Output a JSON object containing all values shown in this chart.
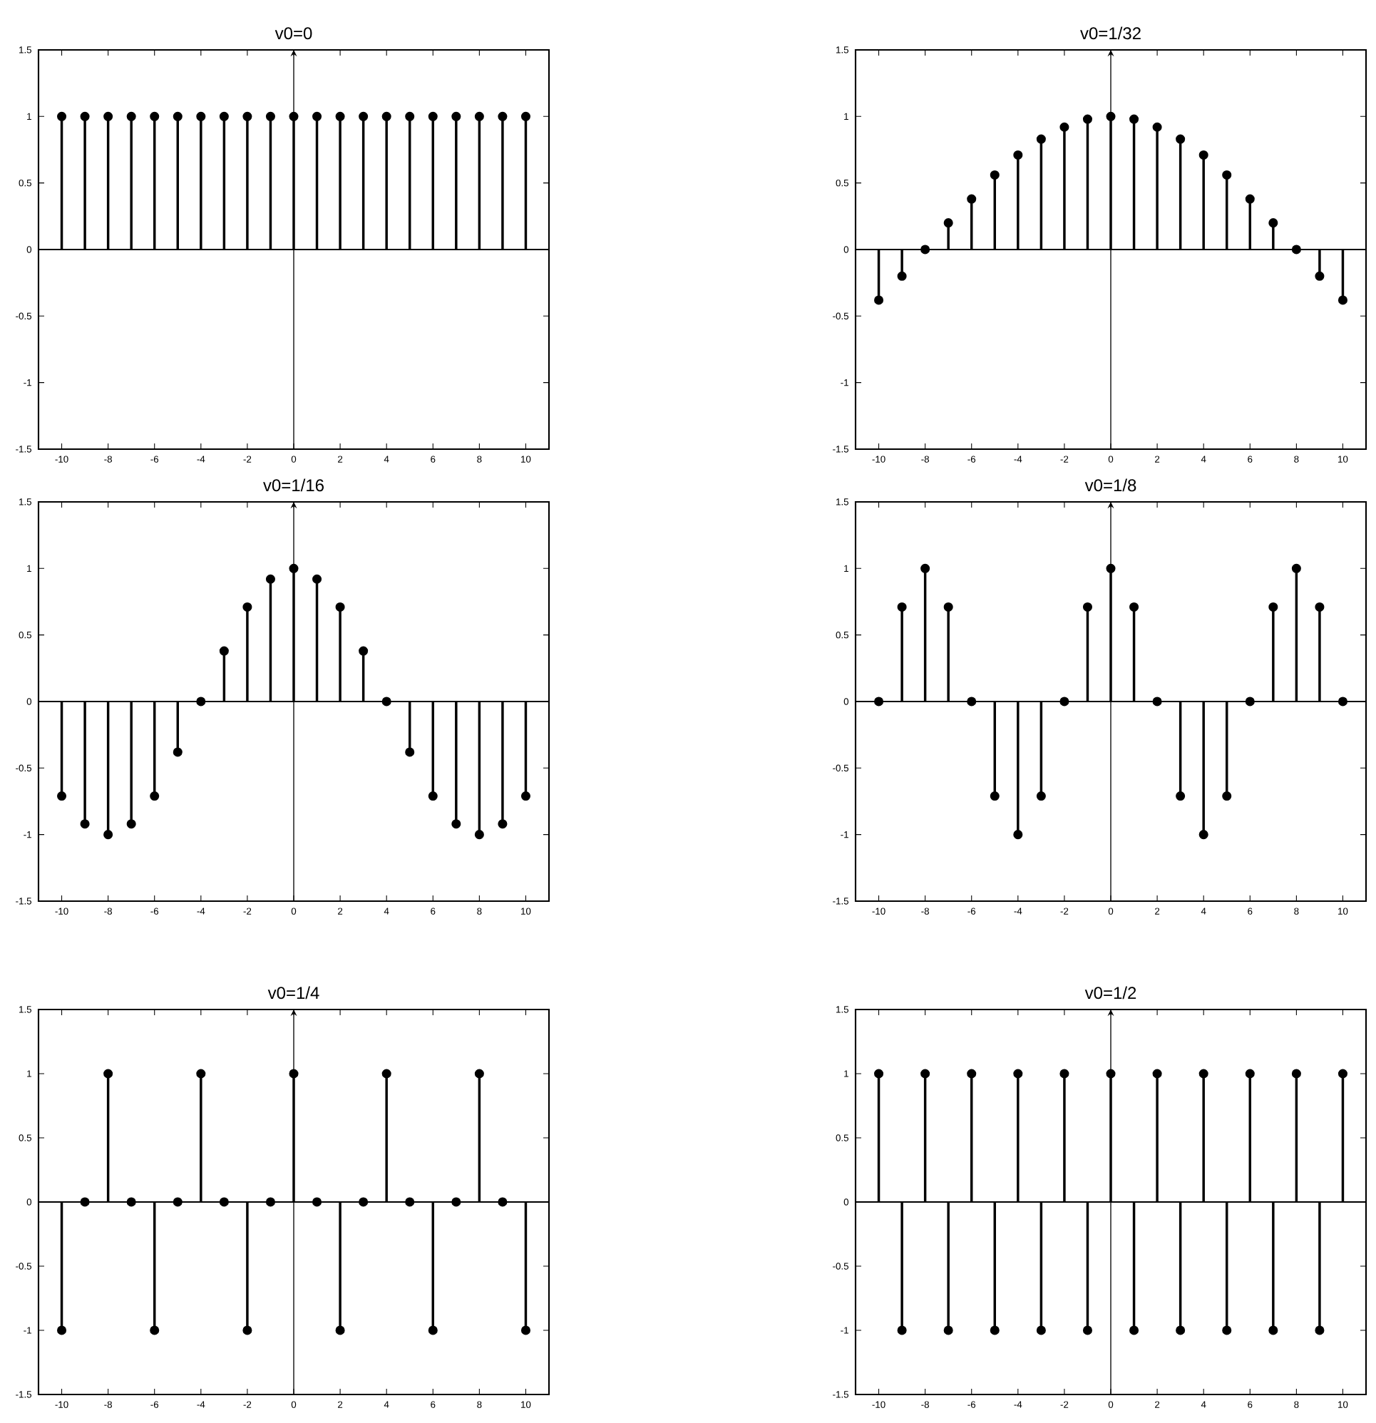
{
  "chart_data": [
    {
      "type": "lollipop",
      "title": "v0=0",
      "color": "#000000",
      "marker": "circle",
      "grid": false,
      "xlim": [
        -11,
        11
      ],
      "ylim": [
        -1.5,
        1.5
      ],
      "xticks": [
        -10,
        -8,
        -6,
        -4,
        -2,
        0,
        2,
        4,
        6,
        8,
        10
      ],
      "yticks": [
        -1.5,
        -1,
        -0.5,
        0,
        0.5,
        1,
        1.5
      ],
      "ref_lines": [
        {
          "axis": "x",
          "value": 0
        }
      ],
      "x": [
        -10,
        -9,
        -8,
        -7,
        -6,
        -5,
        -4,
        -3,
        -2,
        -1,
        0,
        1,
        2,
        3,
        4,
        5,
        6,
        7,
        8,
        9,
        10
      ],
      "values": [
        1,
        1,
        1,
        1,
        1,
        1,
        1,
        1,
        1,
        1,
        1,
        1,
        1,
        1,
        1,
        1,
        1,
        1,
        1,
        1,
        1
      ]
    },
    {
      "type": "lollipop",
      "title": "v0=1/32",
      "color": "#000000",
      "marker": "circle",
      "grid": false,
      "xlim": [
        -11,
        11
      ],
      "ylim": [
        -1.5,
        1.5
      ],
      "xticks": [
        -10,
        -8,
        -6,
        -4,
        -2,
        0,
        2,
        4,
        6,
        8,
        10
      ],
      "yticks": [
        -1.5,
        -1,
        -0.5,
        0,
        0.5,
        1,
        1.5
      ],
      "ref_lines": [
        {
          "axis": "x",
          "value": 0
        }
      ],
      "x": [
        -10,
        -9,
        -8,
        -7,
        -6,
        -5,
        -4,
        -3,
        -2,
        -1,
        0,
        1,
        2,
        3,
        4,
        5,
        6,
        7,
        8,
        9,
        10
      ],
      "values": [
        -0.38,
        -0.2,
        0,
        0.2,
        0.38,
        0.56,
        0.71,
        0.83,
        0.92,
        0.98,
        1,
        0.98,
        0.92,
        0.83,
        0.71,
        0.56,
        0.38,
        0.2,
        0,
        -0.2,
        -0.38
      ]
    },
    {
      "type": "lollipop",
      "title": "v0=1/16",
      "color": "#000000",
      "marker": "circle",
      "grid": false,
      "xlim": [
        -11,
        11
      ],
      "ylim": [
        -1.5,
        1.5
      ],
      "xticks": [
        -10,
        -8,
        -6,
        -4,
        -2,
        0,
        2,
        4,
        6,
        8,
        10
      ],
      "yticks": [
        -1.5,
        -1,
        -0.5,
        0,
        0.5,
        1,
        1.5
      ],
      "ref_lines": [
        {
          "axis": "x",
          "value": 0
        }
      ],
      "x": [
        -10,
        -9,
        -8,
        -7,
        -6,
        -5,
        -4,
        -3,
        -2,
        -1,
        0,
        1,
        2,
        3,
        4,
        5,
        6,
        7,
        8,
        9,
        10
      ],
      "values": [
        -0.71,
        -0.92,
        -1,
        -0.92,
        -0.71,
        -0.38,
        0,
        0.38,
        0.71,
        0.92,
        1,
        0.92,
        0.71,
        0.38,
        0,
        -0.38,
        -0.71,
        -0.92,
        -1,
        -0.92,
        -0.71
      ]
    },
    {
      "type": "lollipop",
      "title": "v0=1/8",
      "color": "#000000",
      "marker": "circle",
      "grid": false,
      "xlim": [
        -11,
        11
      ],
      "ylim": [
        -1.5,
        1.5
      ],
      "xticks": [
        -10,
        -8,
        -6,
        -4,
        -2,
        0,
        2,
        4,
        6,
        8,
        10
      ],
      "yticks": [
        -1.5,
        -1,
        -0.5,
        0,
        0.5,
        1,
        1.5
      ],
      "ref_lines": [
        {
          "axis": "x",
          "value": 0
        }
      ],
      "x": [
        -10,
        -9,
        -8,
        -7,
        -6,
        -5,
        -4,
        -3,
        -2,
        -1,
        0,
        1,
        2,
        3,
        4,
        5,
        6,
        7,
        8,
        9,
        10
      ],
      "values": [
        0,
        0.71,
        1,
        0.71,
        0,
        -0.71,
        -1,
        -0.71,
        0,
        0.71,
        1,
        0.71,
        0,
        -0.71,
        -1,
        -0.71,
        0,
        0.71,
        1,
        0.71,
        0
      ]
    },
    {
      "type": "lollipop",
      "title": "v0=1/4",
      "color": "#000000",
      "marker": "circle",
      "grid": false,
      "xlim": [
        -11,
        11
      ],
      "ylim": [
        -1.5,
        1.5
      ],
      "xticks": [
        -10,
        -8,
        -6,
        -4,
        -2,
        0,
        2,
        4,
        6,
        8,
        10
      ],
      "yticks": [
        -1.5,
        -1,
        -0.5,
        0,
        0.5,
        1,
        1.5
      ],
      "ref_lines": [
        {
          "axis": "x",
          "value": 0
        }
      ],
      "x": [
        -10,
        -9,
        -8,
        -7,
        -6,
        -5,
        -4,
        -3,
        -2,
        -1,
        0,
        1,
        2,
        3,
        4,
        5,
        6,
        7,
        8,
        9,
        10
      ],
      "values": [
        -1,
        0,
        1,
        0,
        -1,
        0,
        1,
        0,
        -1,
        0,
        1,
        0,
        -1,
        0,
        1,
        0,
        -1,
        0,
        1,
        0,
        -1
      ]
    },
    {
      "type": "lollipop",
      "title": "v0=1/2",
      "color": "#000000",
      "marker": "circle",
      "grid": false,
      "xlim": [
        -11,
        11
      ],
      "ylim": [
        -1.5,
        1.5
      ],
      "xticks": [
        -10,
        -8,
        -6,
        -4,
        -2,
        0,
        2,
        4,
        6,
        8,
        10
      ],
      "yticks": [
        -1.5,
        -1,
        -0.5,
        0,
        0.5,
        1,
        1.5
      ],
      "ref_lines": [
        {
          "axis": "x",
          "value": 0
        }
      ],
      "x": [
        -10,
        -9,
        -8,
        -7,
        -6,
        -5,
        -4,
        -3,
        -2,
        -1,
        0,
        1,
        2,
        3,
        4,
        5,
        6,
        7,
        8,
        9,
        10
      ],
      "values": [
        1,
        -1,
        1,
        -1,
        1,
        -1,
        1,
        -1,
        1,
        -1,
        1,
        -1,
        1,
        -1,
        1,
        -1,
        1,
        -1,
        1,
        -1,
        1
      ]
    }
  ]
}
